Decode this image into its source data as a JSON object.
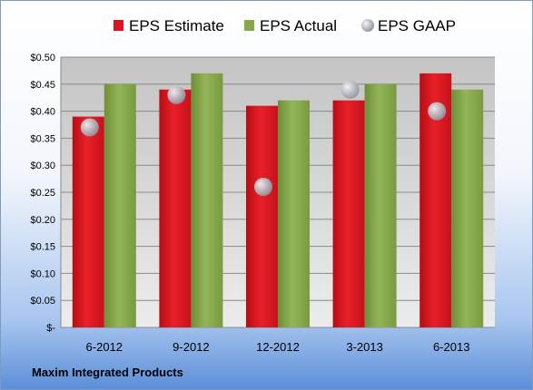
{
  "chart_data": {
    "type": "bar",
    "categories": [
      "6-2012",
      "9-2012",
      "12-2012",
      "3-2013",
      "6-2013"
    ],
    "series": [
      {
        "name": "EPS Estimate",
        "kind": "bar",
        "color": "#d9141e",
        "values": [
          0.39,
          0.44,
          0.41,
          0.42,
          0.47
        ]
      },
      {
        "name": "EPS Actual",
        "kind": "bar",
        "color": "#86a84a",
        "values": [
          0.45,
          0.47,
          0.42,
          0.45,
          0.44
        ]
      },
      {
        "name": "EPS GAAP",
        "kind": "scatter",
        "color": "#b8bcc4",
        "values": [
          0.37,
          0.43,
          0.26,
          0.44,
          0.4
        ]
      }
    ],
    "y_ticks": [
      "$-",
      "$0.05",
      "$0.10",
      "$0.15",
      "$0.20",
      "$0.25",
      "$0.30",
      "$0.35",
      "$0.40",
      "$0.45",
      "$0.50"
    ],
    "ylim": [
      0,
      0.5
    ],
    "ystep": 0.05,
    "grid": true,
    "legend_position": "top"
  },
  "footer": {
    "company": "Maxim Integrated Products"
  }
}
